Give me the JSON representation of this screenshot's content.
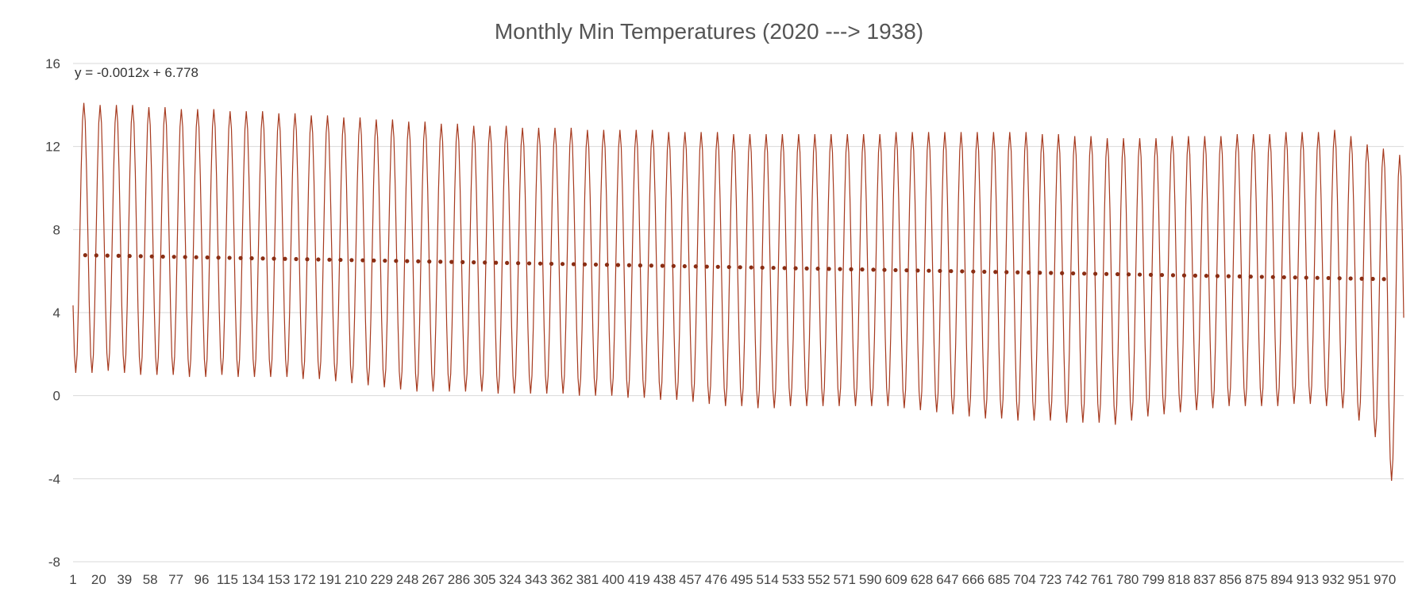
{
  "chart_data": {
    "type": "line",
    "title": "Monthly Min Temperatures (2020 ---> 1938)",
    "xlabel": "",
    "ylabel": "",
    "xlim": [
      1,
      984
    ],
    "ylim": [
      -8,
      16
    ],
    "y_ticks": [
      16,
      12,
      8,
      4,
      0,
      -4,
      -8
    ],
    "x_tick_labels": [
      "1",
      "20",
      "39",
      "58",
      "77",
      "96",
      "115",
      "134",
      "153",
      "172",
      "191",
      "210",
      "229",
      "248",
      "267",
      "286",
      "305",
      "324",
      "343",
      "362",
      "381",
      "400",
      "419",
      "438",
      "457",
      "476",
      "495",
      "514",
      "533",
      "552",
      "571",
      "590",
      "609",
      "628",
      "647",
      "666",
      "685",
      "704",
      "723",
      "742",
      "761",
      "780",
      "799",
      "818",
      "837",
      "856",
      "875",
      "894",
      "913",
      "932",
      "951",
      "970"
    ],
    "grid": true,
    "legend": "none",
    "colors": {
      "series": "#a63a1f",
      "trend": "#8a2e14",
      "grid": "#d9d9d9",
      "title": "#555555"
    },
    "trendline": {
      "equation_label": "y = -0.0012x + 6.778",
      "slope": -0.0012,
      "intercept": 6.778,
      "style": "dotted"
    },
    "series": [
      {
        "description_points_per_year": 12,
        "annual_max_values": [
          14.1,
          14.0,
          14.0,
          14.0,
          13.9,
          13.9,
          13.8,
          13.8,
          13.8,
          13.7,
          13.7,
          13.7,
          13.6,
          13.6,
          13.5,
          13.5,
          13.4,
          13.4,
          13.3,
          13.3,
          13.2,
          13.2,
          13.1,
          13.1,
          13.0,
          13.0,
          13.0,
          12.9,
          12.9,
          12.9,
          12.9,
          12.8,
          12.8,
          12.8,
          12.8,
          12.8,
          12.7,
          12.7,
          12.7,
          12.7,
          12.6,
          12.6,
          12.6,
          12.6,
          12.6,
          12.6,
          12.6,
          12.6,
          12.6,
          12.6,
          12.7,
          12.7,
          12.7,
          12.7,
          12.7,
          12.7,
          12.7,
          12.7,
          12.7,
          12.6,
          12.6,
          12.5,
          12.5,
          12.4,
          12.4,
          12.4,
          12.4,
          12.5,
          12.5,
          12.5,
          12.5,
          12.6,
          12.6,
          12.6,
          12.7,
          12.7,
          12.7,
          12.8,
          12.5,
          12.1,
          11.9,
          11.6
        ],
        "annual_min_values": [
          1.1,
          1.1,
          1.2,
          1.1,
          1.0,
          1.0,
          1.0,
          0.9,
          0.9,
          1.0,
          0.9,
          0.9,
          0.9,
          0.9,
          0.8,
          0.8,
          0.7,
          0.6,
          0.5,
          0.4,
          0.3,
          0.2,
          0.2,
          0.2,
          0.2,
          0.2,
          0.1,
          0.1,
          0.1,
          0.1,
          0.1,
          0.0,
          0.0,
          0.0,
          -0.1,
          -0.1,
          -0.2,
          -0.2,
          -0.3,
          -0.4,
          -0.5,
          -0.5,
          -0.6,
          -0.6,
          -0.5,
          -0.5,
          -0.5,
          -0.5,
          -0.5,
          -0.5,
          -0.5,
          -0.6,
          -0.7,
          -0.8,
          -0.9,
          -1.0,
          -1.1,
          -1.1,
          -1.2,
          -1.2,
          -1.2,
          -1.3,
          -1.3,
          -1.3,
          -1.4,
          -1.2,
          -1.0,
          -0.9,
          -0.8,
          -0.7,
          -0.6,
          -0.5,
          -0.5,
          -0.5,
          -0.5,
          -0.4,
          -0.4,
          -0.5,
          -0.6,
          -1.2,
          -2.0,
          -4.1
        ]
      }
    ]
  }
}
